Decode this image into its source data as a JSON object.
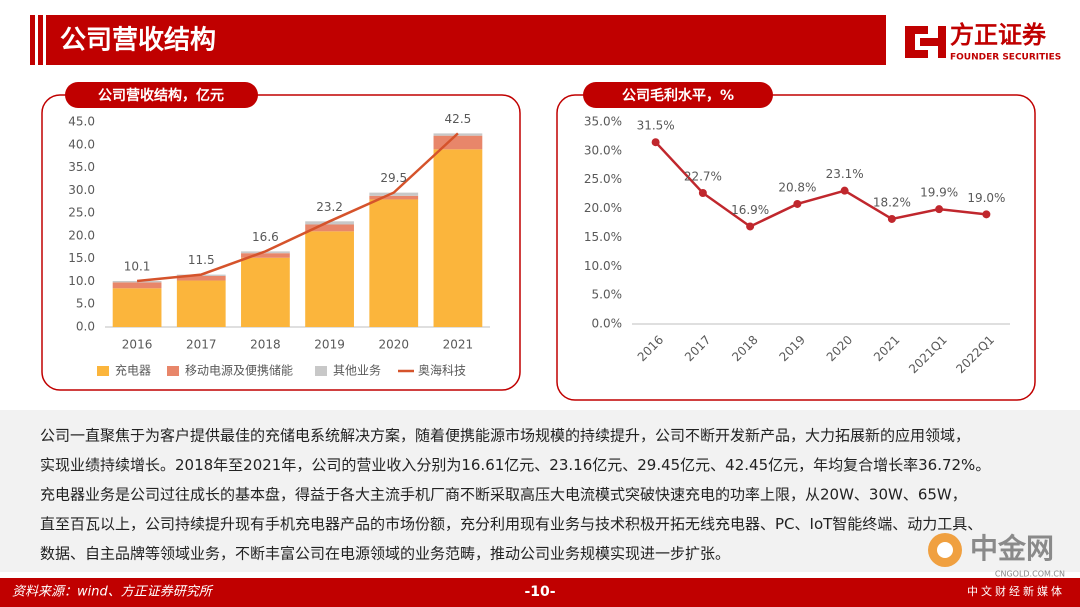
{
  "header": {
    "title": "公司营收结构",
    "logo": "方正证券",
    "logo_sub": "FOUNDER SECURITIES"
  },
  "chart_data": [
    {
      "type": "bar",
      "title": "公司营收结构，亿元",
      "categories": [
        "2016",
        "2017",
        "2018",
        "2019",
        "2020",
        "2021"
      ],
      "series": [
        {
          "name": "充电器",
          "color": "#fbb53c",
          "values": [
            8.5,
            10.2,
            15.2,
            21.0,
            28.0,
            39.0
          ]
        },
        {
          "name": "移动电源及便携储能",
          "color": "#e8866a",
          "values": [
            1.3,
            1.0,
            1.0,
            1.5,
            0.8,
            3.0
          ]
        },
        {
          "name": "其他业务",
          "color": "#c8c8c8",
          "values": [
            0.3,
            0.3,
            0.4,
            0.7,
            0.7,
            0.5
          ]
        },
        {
          "name": "奥海科技",
          "type": "line",
          "color": "#d5532b",
          "values": [
            10.1,
            11.5,
            16.6,
            23.2,
            29.5,
            42.5
          ]
        }
      ],
      "ylim": [
        0,
        45
      ],
      "yticks": [
        {
          "value": 0,
          "label": "0.0"
        },
        {
          "value": 5,
          "label": "5.0"
        },
        {
          "value": 10,
          "label": "10.0"
        },
        {
          "value": 15,
          "label": "15.0"
        },
        {
          "value": 20,
          "label": "20.0"
        },
        {
          "value": 25,
          "label": "25.0"
        },
        {
          "value": 30,
          "label": "30.0"
        },
        {
          "value": 35,
          "label": "35.0"
        },
        {
          "value": 40,
          "label": "40.0"
        },
        {
          "value": 45,
          "label": "45.0"
        }
      ],
      "legend": "bottom"
    },
    {
      "type": "line",
      "title": "公司毛利水平，%",
      "categories": [
        "2016",
        "2017",
        "2018",
        "2019",
        "2020",
        "2021",
        "2021Q1",
        "2022Q1"
      ],
      "values": [
        31.5,
        22.7,
        16.9,
        20.8,
        23.1,
        18.2,
        19.9,
        19.0
      ],
      "value_labels": [
        "31.5%",
        "22.7%",
        "16.9%",
        "20.8%",
        "23.1%",
        "18.2%",
        "19.9%",
        "19.0%"
      ],
      "color": "#c0272d",
      "ylim": [
        0,
        35
      ],
      "yticks": [
        {
          "value": 0,
          "label": "0.0%"
        },
        {
          "value": 5,
          "label": "5.0%"
        },
        {
          "value": 10,
          "label": "10.0%"
        },
        {
          "value": 15,
          "label": "15.0%"
        },
        {
          "value": 20,
          "label": "20.0%"
        },
        {
          "value": 25,
          "label": "25.0%"
        },
        {
          "value": 30,
          "label": "30.0%"
        },
        {
          "value": 35,
          "label": "35.0%"
        }
      ]
    }
  ],
  "body": {
    "lines": [
      "公司一直聚焦于为客户提供最佳的充储电系统解决方案，随着便携能源市场规模的持续提升，公司不断开发新产品，大力拓展新的应用领域，",
      "实现业绩持续增长。2018年至2021年，公司的营业收入分别为16.61亿元、23.16亿元、29.45亿元、42.45亿元，年均复合增长率36.72%。",
      "充电器业务是公司过往成长的基本盘，得益于各大主流手机厂商不断采取高压大电流模式突破快速充电的功率上限，从20W、30W、65W，",
      "直至百瓦以上，公司持续提升现有手机充电器产品的市场份额，充分利用现有业务与技术积极开拓无线充电器、PC、IoT智能终端、动力工具、",
      "数据、自主品牌等领域业务，不断丰富公司在电源领域的业务范畴，推动公司业务规模实现进一步扩张。"
    ]
  },
  "footer": {
    "source": "资料来源：wind、方正证券研究所",
    "page": "-10-"
  },
  "watermark": {
    "name": "中金网",
    "url": "CNGOLD.COM.CN",
    "tagline": "中文财经新媒体"
  }
}
